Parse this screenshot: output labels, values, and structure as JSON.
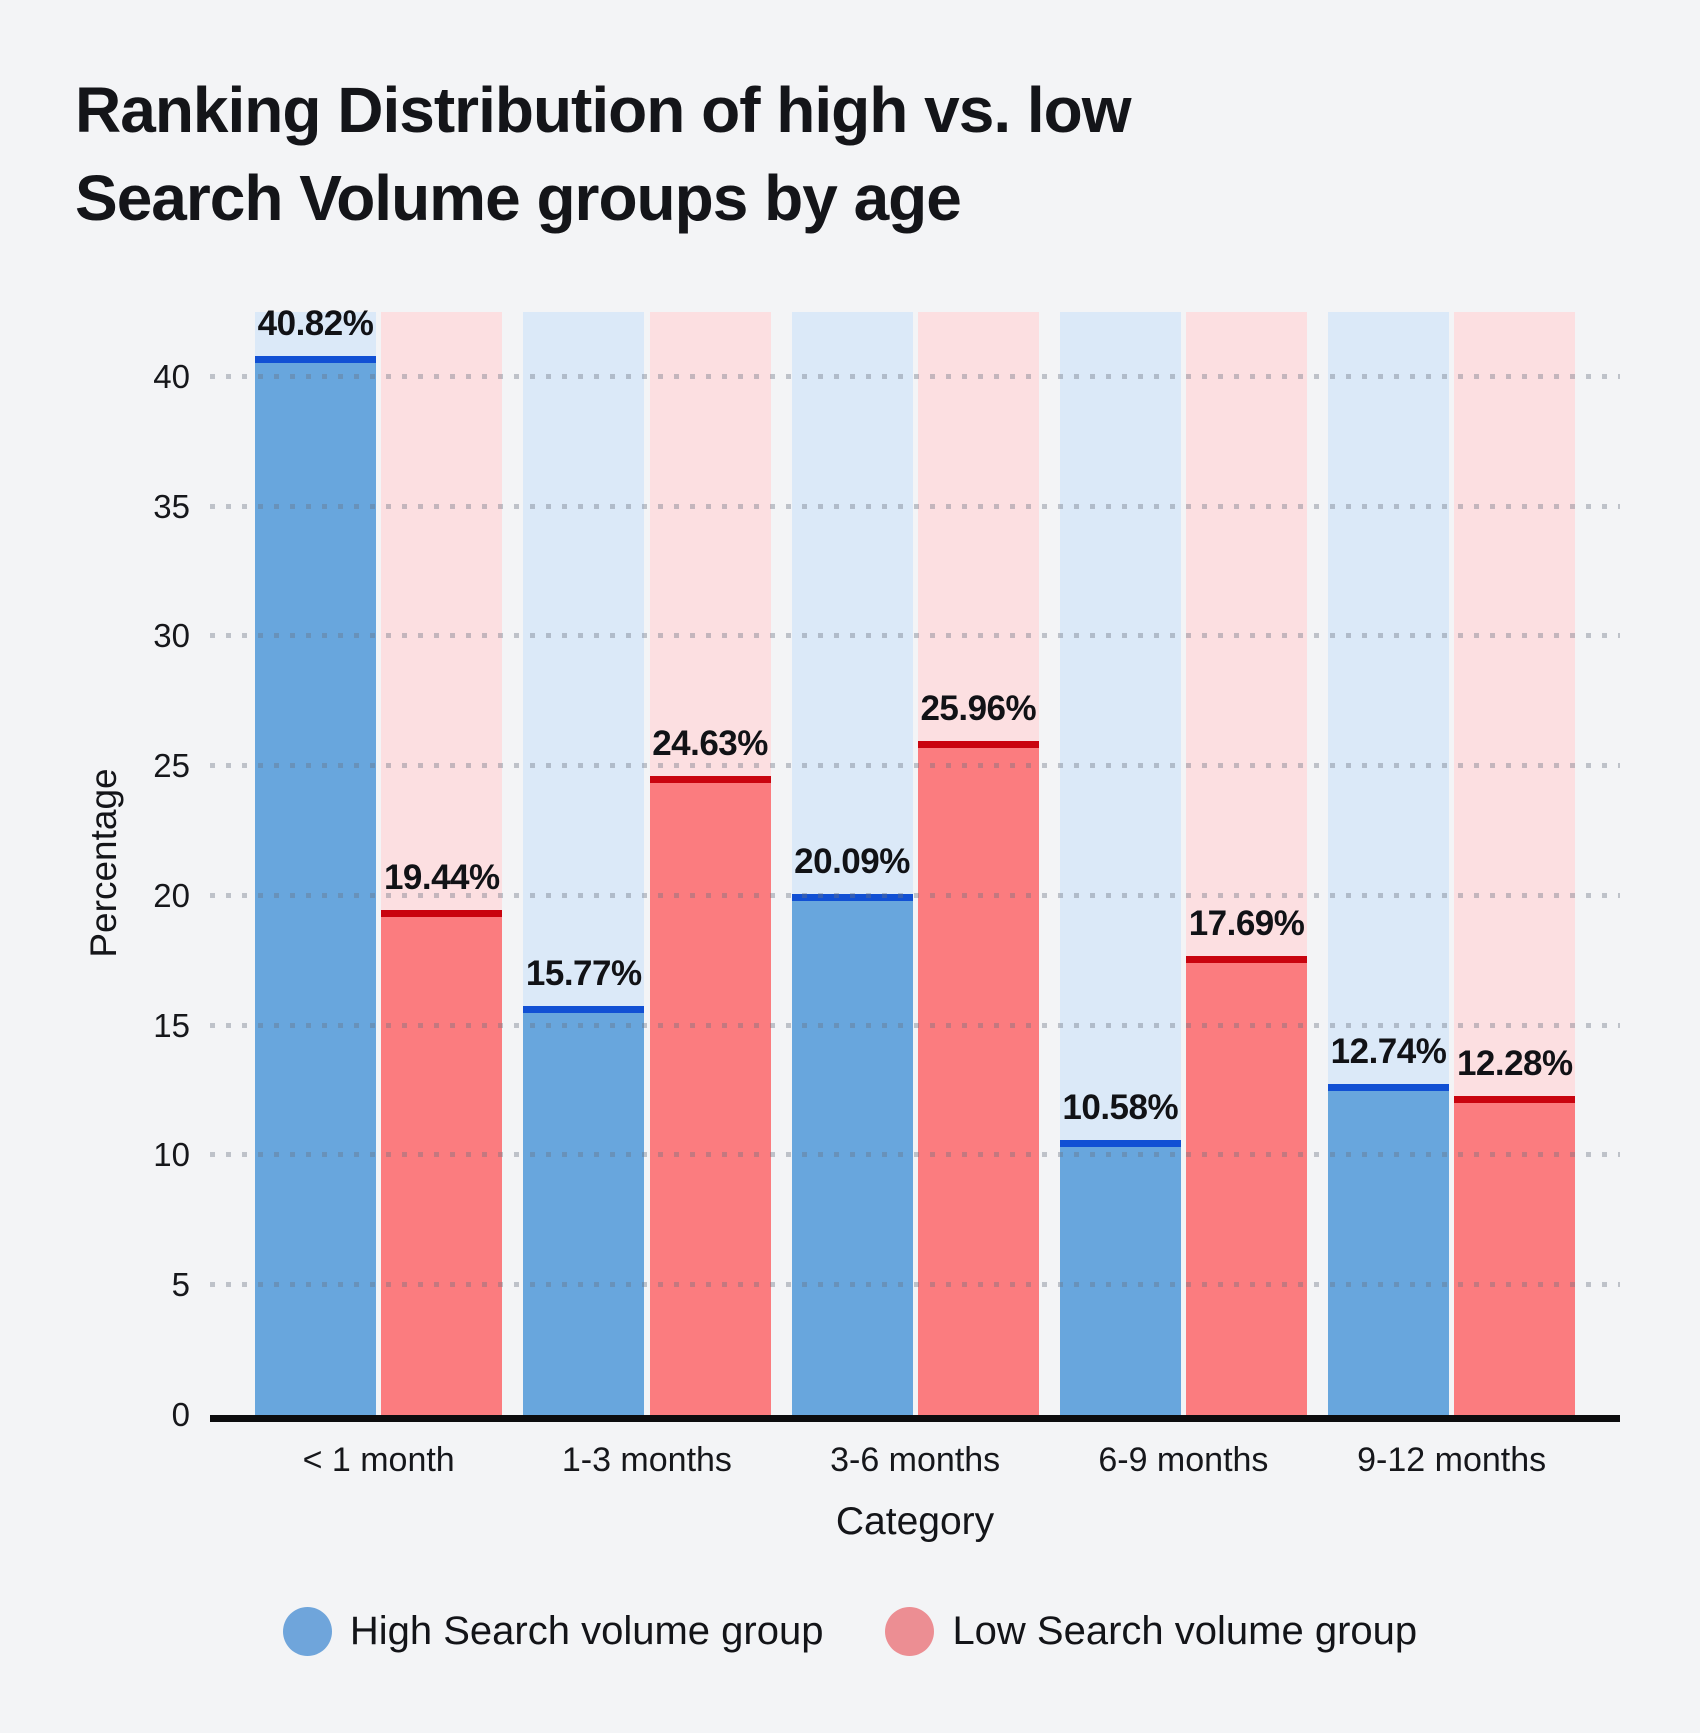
{
  "title": {
    "line1": "Ranking Distribution of high vs. low",
    "line2": "Search Volume groups by age"
  },
  "colors": {
    "background": "#f3f4f6",
    "axis_line": "#0c0c0e",
    "high_bar": "#68a6dd",
    "high_bar_edge": "#1150d4",
    "high_band": "#dbe9f8",
    "low_bar": "#fb7c7f",
    "low_bar_edge": "#c9040f",
    "low_band": "#fcdfe1"
  },
  "chart_data": {
    "type": "bar",
    "title": "Ranking Distribution of high vs. low Search Volume groups by age",
    "categories": [
      "< 1 month",
      "1-3 months",
      "3-6 months",
      "6-9 months",
      "9-12 months"
    ],
    "series": [
      {
        "name": "High Search volume group",
        "values": [
          40.82,
          15.77,
          20.09,
          10.58,
          12.74
        ],
        "labels": [
          "40.82%",
          "15.77%",
          "20.09%",
          "10.58%",
          "12.74%"
        ],
        "color": "#68a6dd",
        "edge_color": "#1150d4",
        "band_color": "#dbe9f8"
      },
      {
        "name": "Low Search volume group",
        "values": [
          19.44,
          24.63,
          25.96,
          17.69,
          12.28
        ],
        "labels": [
          "19.44%",
          "24.63%",
          "25.96%",
          "17.69%",
          "12.28%"
        ],
        "color": "#fb7c7f",
        "edge_color": "#c9040f",
        "band_color": "#fcdfe1"
      }
    ],
    "xlabel": "Category",
    "ylabel": "Percentage",
    "ylim": [
      0,
      42.5
    ],
    "yticks": [
      0,
      5,
      10,
      15,
      20,
      25,
      30,
      35,
      40
    ],
    "ytick_labels": [
      "0",
      "5",
      "10",
      "15",
      "20",
      "25",
      "30",
      "35",
      "40"
    ],
    "grid": "horizontal-dotted",
    "legend_position": "bottom"
  },
  "legend": {
    "items": [
      {
        "label": "High Search volume group",
        "color": "#6fa5db"
      },
      {
        "label": "Low Search volume group",
        "color": "#ec8e93"
      }
    ]
  }
}
